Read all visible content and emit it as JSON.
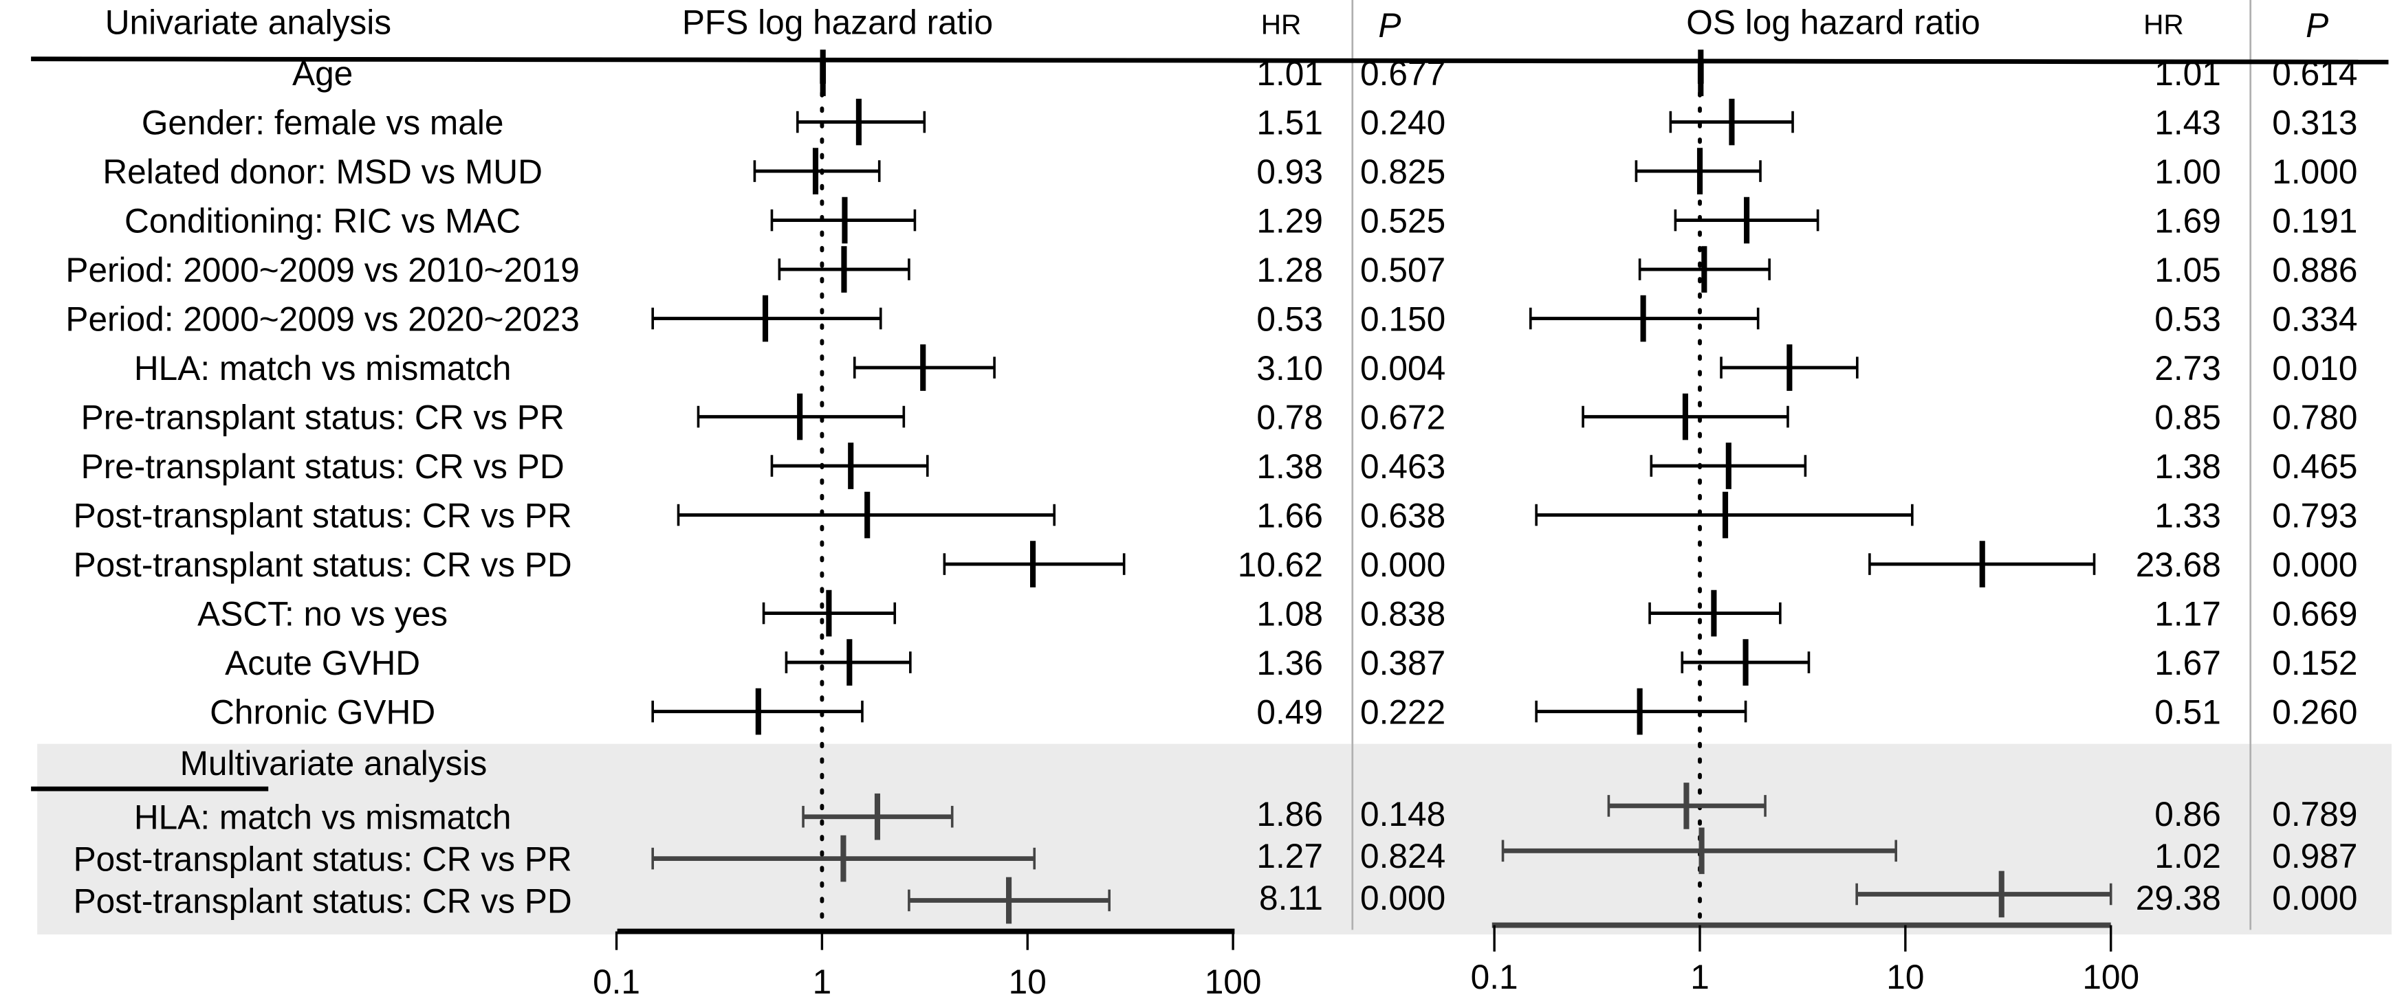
{
  "chart_data": {
    "type": "forest",
    "x_scale": "log",
    "headers": {
      "univariate": "Univariate analysis",
      "pfs_title": "PFS log hazard ratio",
      "os_title": "OS log hazard ratio",
      "hr": "HR",
      "p": "P",
      "multivariate": "Multivariate analysis"
    },
    "axis_ticks": [
      "0.1",
      "1",
      "10",
      "100"
    ],
    "axis_values": [
      0.1,
      1,
      10,
      100
    ],
    "reference_line": 1,
    "univariate": [
      {
        "label": "Age",
        "pfs": {
          "hr": "1.01",
          "lo": 0.99,
          "hi": 1.03,
          "p": "0.677"
        },
        "os": {
          "hr": "1.01",
          "lo": 0.99,
          "hi": 1.03,
          "p": "0.614"
        }
      },
      {
        "label": "Gender: female vs male",
        "pfs": {
          "hr": "1.51",
          "lo": 0.76,
          "hi": 3.15,
          "p": "0.240"
        },
        "os": {
          "hr": "1.43",
          "lo": 0.72,
          "hi": 2.83,
          "p": "0.313"
        }
      },
      {
        "label": "Related donor: MSD vs MUD",
        "pfs": {
          "hr": "0.93",
          "lo": 0.47,
          "hi": 1.9,
          "p": "0.825"
        },
        "os": {
          "hr": "1.00",
          "lo": 0.49,
          "hi": 1.97,
          "p": "1.000"
        }
      },
      {
        "label": "Conditioning: RIC vs MAC",
        "pfs": {
          "hr": "1.29",
          "lo": 0.57,
          "hi": 2.83,
          "p": "0.525"
        },
        "os": {
          "hr": "1.69",
          "lo": 0.76,
          "hi": 3.75,
          "p": "0.191"
        }
      },
      {
        "label": "Period: 2000~2009 vs 2010~2019",
        "pfs": {
          "hr": "1.28",
          "lo": 0.62,
          "hi": 2.65,
          "p": "0.507"
        },
        "os": {
          "hr": "1.05",
          "lo": 0.51,
          "hi": 2.18,
          "p": "0.886"
        }
      },
      {
        "label": "Period: 2000~2009 vs 2020~2023",
        "pfs": {
          "hr": "0.53",
          "lo": 0.15,
          "hi": 1.93,
          "p": "0.150"
        },
        "os": {
          "hr": "0.53",
          "lo": 0.15,
          "hi": 1.92,
          "p": "0.334"
        }
      },
      {
        "label": "HLA: match vs mismatch",
        "pfs": {
          "hr": "3.10",
          "lo": 1.44,
          "hi": 6.9,
          "p": "0.004"
        },
        "os": {
          "hr": "2.73",
          "lo": 1.27,
          "hi": 5.83,
          "p": "0.010"
        }
      },
      {
        "label": "Pre-transplant status: CR vs PR",
        "pfs": {
          "hr": "0.78",
          "lo": 0.25,
          "hi": 2.5,
          "p": "0.672"
        },
        "os": {
          "hr": "0.85",
          "lo": 0.27,
          "hi": 2.68,
          "p": "0.780"
        }
      },
      {
        "label": "Pre-transplant status: CR vs PD",
        "pfs": {
          "hr": "1.38",
          "lo": 0.57,
          "hi": 3.26,
          "p": "0.463"
        },
        "os": {
          "hr": "1.38",
          "lo": 0.58,
          "hi": 3.26,
          "p": "0.465"
        }
      },
      {
        "label": "Post-transplant status: CR vs PR",
        "pfs": {
          "hr": "1.66",
          "lo": 0.2,
          "hi": 13.5,
          "p": "0.638"
        },
        "os": {
          "hr": "1.33",
          "lo": 0.16,
          "hi": 10.8,
          "p": "0.793"
        }
      },
      {
        "label": "Post-transplant status: CR vs PD",
        "pfs": {
          "hr": "10.62",
          "lo": 3.94,
          "hi": 29.5,
          "p": "0.000"
        },
        "os": {
          "hr": "23.68",
          "lo": 6.7,
          "hi": 83,
          "p": "0.000"
        }
      },
      {
        "label": "ASCT: no vs yes",
        "pfs": {
          "hr": "1.08",
          "lo": 0.52,
          "hi": 2.26,
          "p": "0.838"
        },
        "os": {
          "hr": "1.17",
          "lo": 0.57,
          "hi": 2.46,
          "p": "0.669"
        }
      },
      {
        "label": "Acute GVHD",
        "pfs": {
          "hr": "1.36",
          "lo": 0.67,
          "hi": 2.69,
          "p": "0.387"
        },
        "os": {
          "hr": "1.67",
          "lo": 0.82,
          "hi": 3.39,
          "p": "0.152"
        }
      },
      {
        "label": "Chronic GVHD",
        "pfs": {
          "hr": "0.49",
          "lo": 0.15,
          "hi": 1.57,
          "p": "0.222"
        },
        "os": {
          "hr": "0.51",
          "lo": 0.16,
          "hi": 1.67,
          "p": "0.260"
        }
      }
    ],
    "multivariate": [
      {
        "label": "HLA: match vs mismatch",
        "pfs": {
          "hr": "1.86",
          "lo": 0.81,
          "hi": 4.3,
          "p": "0.148"
        },
        "os": {
          "hr": "0.86",
          "lo": 0.36,
          "hi": 2.08,
          "p": "0.789"
        }
      },
      {
        "label": "Post-transplant status: CR vs PR",
        "pfs": {
          "hr": "1.27",
          "lo": 0.15,
          "hi": 10.8,
          "p": "0.824"
        },
        "os": {
          "hr": "1.02",
          "lo": 0.11,
          "hi": 9.0,
          "p": "0.987"
        }
      },
      {
        "label": "Post-transplant status: CR vs PD",
        "pfs": {
          "hr": "8.11",
          "lo": 2.65,
          "hi": 25,
          "p": "0.000"
        },
        "os": {
          "hr": "29.38",
          "lo": 5.8,
          "hi": 100,
          "p": "0.000"
        }
      }
    ],
    "colors": {
      "univariate": "#000000",
      "multivariate": "#444444",
      "panel": "#ebebeb",
      "separator": "#b0b0b0"
    }
  }
}
